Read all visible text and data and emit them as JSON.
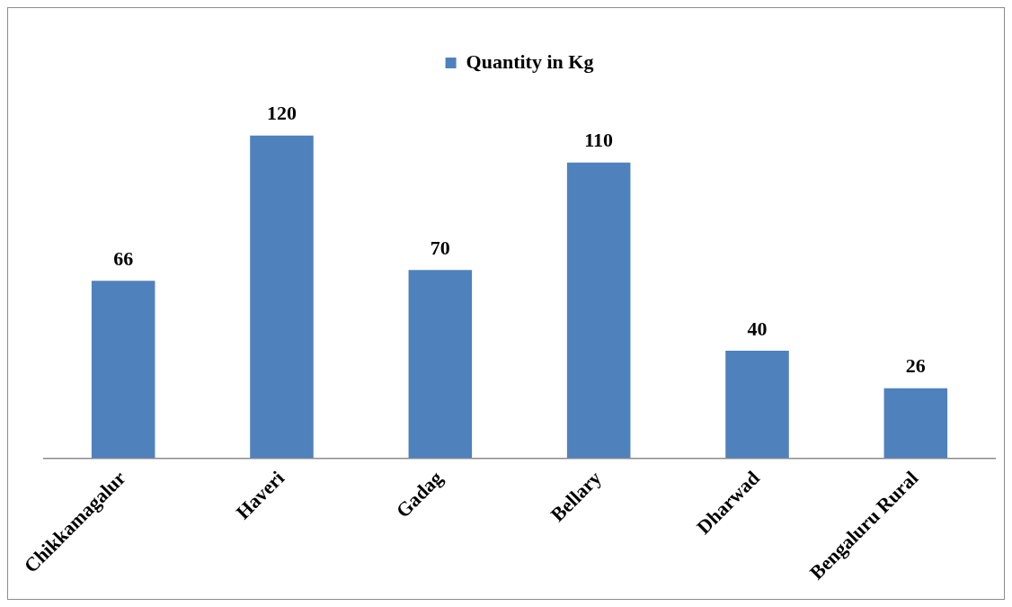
{
  "chart_data": {
    "type": "bar",
    "categories": [
      "Chikkamagalur",
      "Haveri",
      "Gadag",
      "Bellary",
      "Dharwad",
      "Bengaluru Rural"
    ],
    "series": [
      {
        "name": "Quantity in Kg",
        "color": "#4f81bd",
        "values": [
          66,
          120,
          70,
          110,
          40,
          26
        ]
      }
    ],
    "data_labels": true,
    "legend": "top",
    "grid": false
  }
}
